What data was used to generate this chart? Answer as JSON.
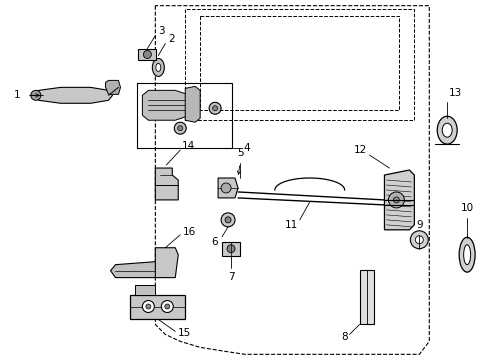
{
  "background_color": "#ffffff",
  "fig_width": 4.89,
  "fig_height": 3.6,
  "dpi": 100,
  "door_outline": {
    "x": [
      0.32,
      0.32,
      0.335,
      0.355,
      0.375,
      0.42,
      0.44,
      0.855,
      0.875,
      0.875,
      0.32
    ],
    "y": [
      0.88,
      0.15,
      0.1,
      0.075,
      0.055,
      0.04,
      0.03,
      0.03,
      0.055,
      0.88,
      0.88
    ]
  },
  "window_outer": {
    "x": [
      0.37,
      0.37,
      0.84,
      0.84,
      0.37
    ],
    "y": [
      0.855,
      0.62,
      0.62,
      0.855,
      0.855
    ]
  },
  "window_inner": {
    "x": [
      0.4,
      0.4,
      0.81,
      0.81,
      0.4
    ],
    "y": [
      0.835,
      0.64,
      0.64,
      0.835,
      0.835
    ]
  }
}
